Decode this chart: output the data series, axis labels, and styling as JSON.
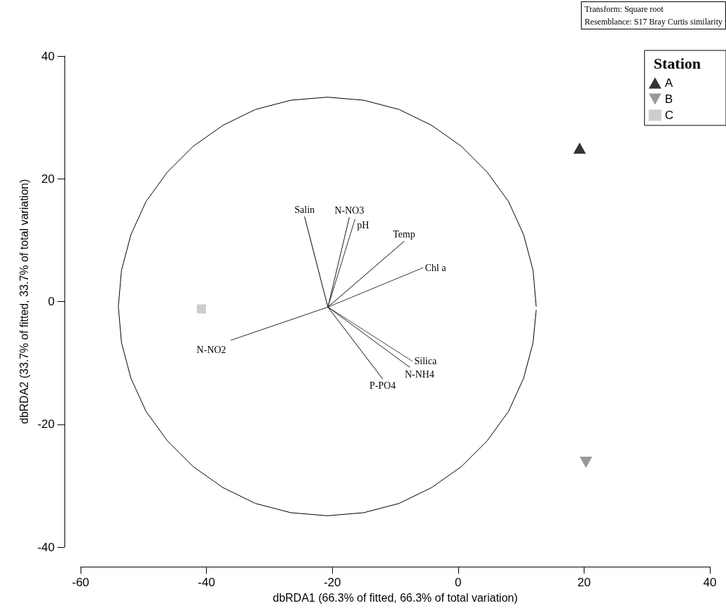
{
  "chart_data": {
    "type": "scatter",
    "xlabel": "dbRDA1 (66.3% of fitted, 66.3% of total variation)",
    "ylabel": "dbRDA2 (33.7% of fitted, 33.7% of total variation)",
    "legend_title": "Station",
    "annotations": [
      "Transform: Square root",
      "Resemblance: S17 Bray Curtis similarity"
    ],
    "xlim": [
      -60,
      40
    ],
    "xticks": [
      -60,
      -40,
      -20,
      0,
      20,
      40
    ],
    "ylim": [
      -40,
      40
    ],
    "yticks": [
      -40,
      -20,
      0,
      20,
      40
    ],
    "grid": false,
    "legend": "top right",
    "series": [
      {
        "name": "A",
        "color": "#000000",
        "marker": "triangle",
        "x": [
          19.3
        ],
        "values": [
          25
        ]
      },
      {
        "name": "B",
        "color": "#808080",
        "marker": "triangle-down",
        "x": [
          20.3
        ],
        "values": [
          -26.2
        ]
      },
      {
        "name": "C",
        "color": "#c0c0c0",
        "marker": "square",
        "x": [
          -40.8
        ],
        "values": [
          -1.2
        ]
      },
      {
        "type": "line",
        "color": "#000000",
        "marker": "none",
        "x": [
          12.4,
          11.9,
          10.4,
          8.0,
          4.6,
          0.5,
          -4.2,
          -9.4,
          -15.0,
          -20.8,
          -26.6,
          -32.2,
          -37.4,
          -42.1,
          -46.2,
          -49.6,
          -52.0,
          -53.5,
          -54.0,
          -53.5,
          -52.0,
          -49.6,
          -46.2,
          -42.1,
          -37.4,
          -32.2,
          -26.6,
          -20.8,
          -15.0,
          -9.4,
          -4.2,
          0.5,
          4.6,
          8.0,
          10.4,
          11.9,
          12.4
        ],
        "values": [
          -0.8,
          5.1,
          10.9,
          16.3,
          21.1,
          25.3,
          28.7,
          31.3,
          32.8,
          33.3,
          32.8,
          31.3,
          28.7,
          25.3,
          21.1,
          16.3,
          10.9,
          5.1,
          -0.8,
          -6.7,
          -12.5,
          -17.9,
          -22.7,
          -26.9,
          -30.3,
          -32.9,
          -34.4,
          -34.9,
          -34.4,
          -32.9,
          -30.3,
          -26.9,
          -22.7,
          -17.9,
          -12.5,
          -6.7,
          -1.4
        ]
      },
      {
        "type": "line",
        "name": "Salin",
        "color": "#000000",
        "marker": "none",
        "x": [
          -20.7,
          -24.4
        ],
        "values": [
          -0.9,
          13.8
        ]
      },
      {
        "type": "line",
        "name": "N-NO3",
        "color": "#181818",
        "marker": "none",
        "x": [
          -20.7,
          -17.3
        ],
        "values": [
          -0.9,
          13.7
        ]
      },
      {
        "type": "line",
        "name": "pH",
        "color": "#303030",
        "marker": "none",
        "x": [
          -20.7,
          -16.4
        ],
        "values": [
          -0.9,
          13.4
        ]
      },
      {
        "type": "line",
        "name": "Temp",
        "color": "#080808",
        "marker": "none",
        "x": [
          -20.7,
          -8.6
        ],
        "values": [
          -0.9,
          9.8
        ]
      },
      {
        "type": "line",
        "name": "Chl a",
        "color": "#383838",
        "marker": "none",
        "x": [
          -20.7,
          -5.6
        ],
        "values": [
          -0.9,
          5.5
        ]
      },
      {
        "type": "line",
        "name": "N-NO2",
        "color": "#282828",
        "marker": "none",
        "x": [
          -20.7,
          -36.1
        ],
        "values": [
          -0.9,
          -6.3
        ]
      },
      {
        "type": "line",
        "name": "Silica",
        "color": "#404040",
        "marker": "none",
        "x": [
          -20.7,
          -7.3
        ],
        "values": [
          -0.9,
          -9.7
        ]
      },
      {
        "type": "line",
        "name": "N-NH4",
        "color": "#202020",
        "marker": "none",
        "x": [
          -20.7,
          -7.7
        ],
        "values": [
          -0.9,
          -10.7
        ]
      },
      {
        "type": "line",
        "name": "P-PO4",
        "color": "#101010",
        "marker": "none",
        "x": [
          -20.7,
          -12.0
        ],
        "values": [
          -0.9,
          -12.6
        ]
      }
    ]
  }
}
